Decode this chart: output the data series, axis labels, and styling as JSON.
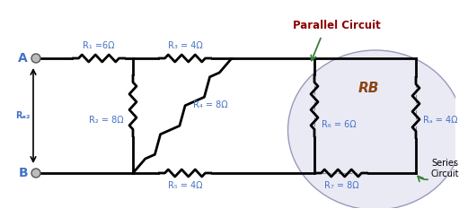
{
  "bg_color": "#ffffff",
  "wire_color": "#000000",
  "resistor_color": "#000000",
  "label_color": "#4472C4",
  "rb_color": "#8B4513",
  "parallel_label_color": "#8B0000",
  "arrow_color": "#3A7D3A",
  "ellipse_fill": "#EAEAF5",
  "ellipse_edge": "#9999BB",
  "node_color": "#BBBBBB",
  "resistors": {
    "R1": "R₁ =6Ω",
    "R2": "R₂ = 8Ω",
    "R3": "R₃ = 4Ω",
    "R4": "R₄ = 8Ω",
    "R5": "R₅ = 4Ω",
    "R6": "R₆ = 6Ω",
    "R7": "R₇ = 8Ω",
    "RA": "Rₐ = 4Ω"
  },
  "parallel_circuit_label": "Parallel Circuit",
  "series_circuit_label": "Series\nCircuit",
  "RB_label": "RB",
  "REQ_label": "Rₑ₂"
}
